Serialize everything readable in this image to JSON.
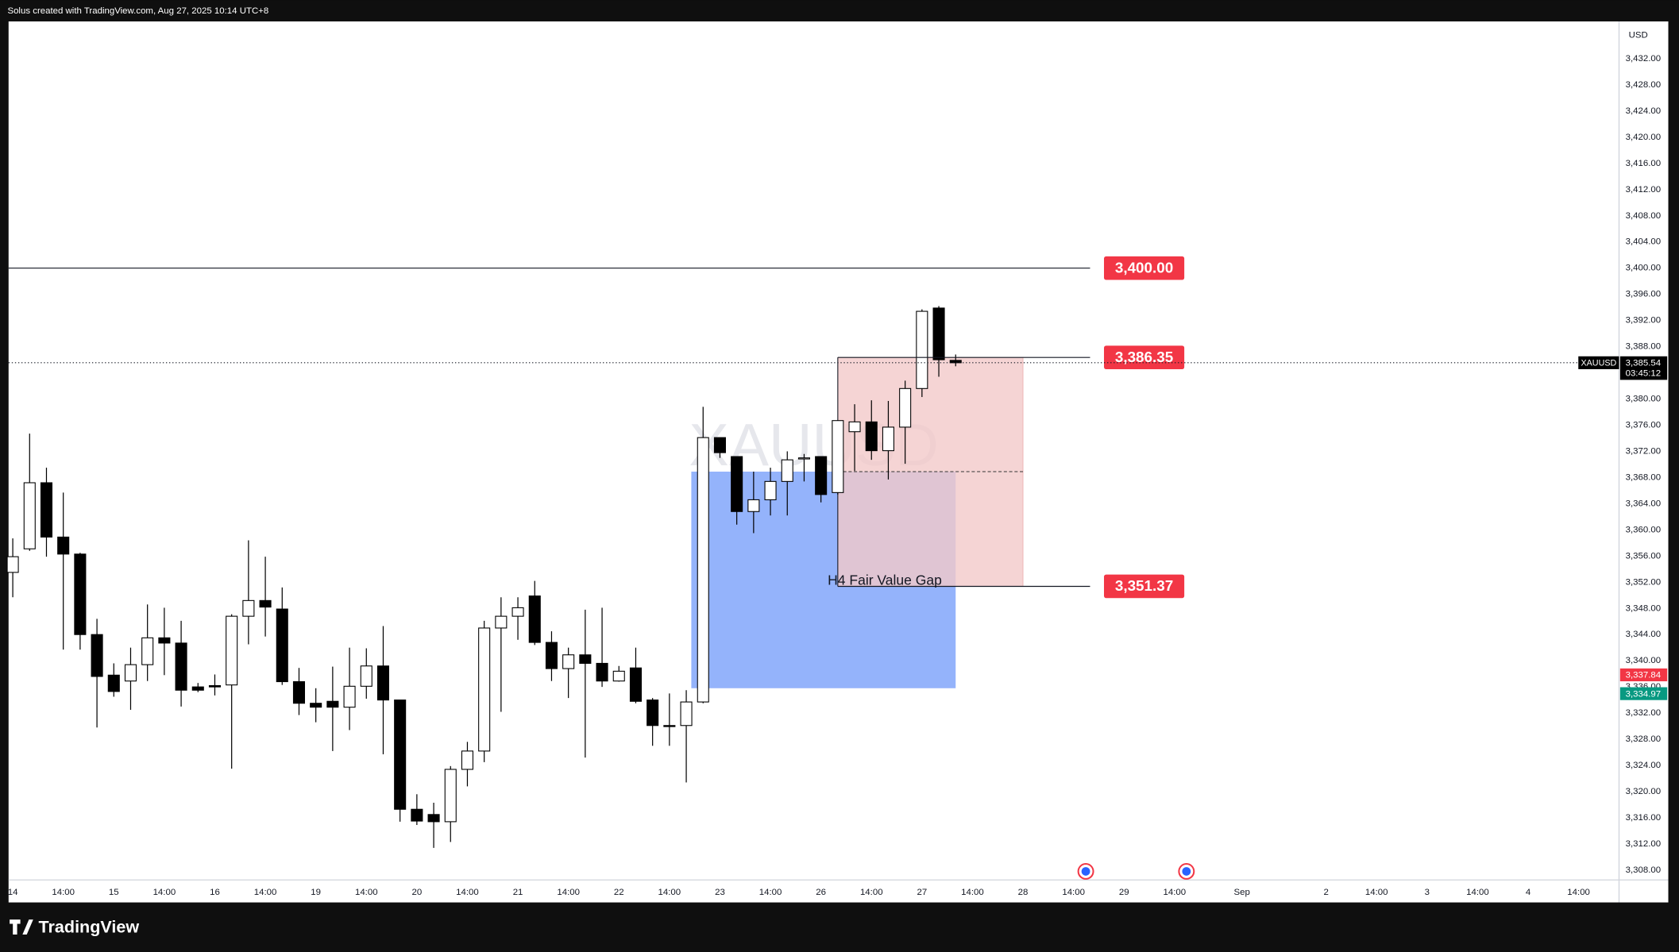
{
  "header": "Solus created with TradingView.com, Aug 27, 2025 10:14 UTC+8",
  "footer": "TradingView",
  "chart_data": {
    "type": "candlestick",
    "symbol": "XAUUSD",
    "currency": "USD",
    "up_color": "#ffffff",
    "down_color": "#000000",
    "open": [
      3353.5,
      3357.1,
      3367.2,
      3358.9,
      3356.3,
      3344.0,
      3337.8,
      3336.9,
      3339.4,
      3343.5,
      3342.7,
      3336.0,
      3336.2,
      3336.3,
      3346.8,
      3349.2,
      3347.9,
      3336.8,
      3333.5,
      3333.8,
      3332.9,
      3336.1,
      3339.2,
      3334.0,
      3317.3,
      3316.5,
      3315.4,
      3323.4,
      3326.2,
      3345.0,
      3346.8,
      3349.9,
      3342.8,
      3338.8,
      3340.9,
      3339.6,
      3336.9,
      3338.9,
      3334.0,
      3330.1,
      3330.1,
      3333.7,
      3374.1,
      3371.2,
      3362.8,
      3364.6,
      3367.4,
      3370.9,
      3371.2,
      3365.7,
      3375.0,
      3376.5,
      3372.1,
      3375.7,
      3381.6,
      3393.9,
      3385.9
    ],
    "high": [
      3358.7,
      3374.7,
      3369.5,
      3365.7,
      3356.5,
      3346.4,
      3339.6,
      3342.0,
      3348.6,
      3348.1,
      3346.1,
      3336.6,
      3337.9,
      3347.1,
      3358.4,
      3355.9,
      3351.2,
      3338.9,
      3335.8,
      3339.1,
      3342.0,
      3341.9,
      3345.3,
      3334.0,
      3319.6,
      3318.3,
      3323.9,
      3327.6,
      3346.1,
      3349.7,
      3349.7,
      3352.2,
      3344.5,
      3342.0,
      3347.8,
      3348.1,
      3339.2,
      3342.0,
      3334.3,
      3335.0,
      3335.5,
      3378.8,
      3374.1,
      3371.2,
      3368.9,
      3369.5,
      3372.0,
      3371.6,
      3371.2,
      3376.7,
      3379.2,
      3379.8,
      3379.7,
      3382.8,
      3393.7,
      3394.2,
      3386.8
    ],
    "low": [
      3349.7,
      3356.8,
      3355.9,
      3341.7,
      3341.7,
      3329.8,
      3334.5,
      3332.5,
      3336.9,
      3337.8,
      3333.0,
      3335.2,
      3334.7,
      3323.5,
      3342.5,
      3343.7,
      3336.3,
      3331.7,
      3330.6,
      3326.2,
      3329.4,
      3334.2,
      3325.7,
      3315.4,
      3314.9,
      3311.4,
      3312.3,
      3320.8,
      3324.5,
      3332.2,
      3343.2,
      3342.4,
      3336.9,
      3334.3,
      3325.2,
      3336.0,
      3336.8,
      3333.5,
      3327.0,
      3327.0,
      3321.4,
      3333.5,
      3371.0,
      3360.8,
      3359.5,
      3362.2,
      3362.2,
      3367.4,
      3364.2,
      3365.4,
      3369.0,
      3370.7,
      3367.7,
      3370.1,
      3380.3,
      3383.4,
      3385.0
    ],
    "close": [
      3355.9,
      3367.2,
      3358.9,
      3356.3,
      3344.0,
      3337.6,
      3335.3,
      3339.4,
      3343.5,
      3342.7,
      3335.5,
      3335.5,
      3336.0,
      3346.8,
      3349.2,
      3348.2,
      3336.8,
      3333.5,
      3332.9,
      3332.9,
      3336.1,
      3339.2,
      3334.0,
      3317.3,
      3315.5,
      3315.4,
      3323.4,
      3326.2,
      3345.0,
      3346.8,
      3348.1,
      3342.8,
      3338.8,
      3340.9,
      3339.6,
      3336.9,
      3338.4,
      3333.8,
      3330.1,
      3330.0,
      3333.7,
      3374.1,
      3371.8,
      3362.8,
      3364.6,
      3367.4,
      3370.7,
      3371.0,
      3365.4,
      3376.7,
      3376.5,
      3372.1,
      3375.7,
      3381.6,
      3393.4,
      3386.0,
      3385.54
    ],
    "xlim": [
      -0.25,
      95.4
    ],
    "xticks": [
      {
        "value": 0,
        "label": "14"
      },
      {
        "value": 3,
        "label": "14:00"
      },
      {
        "value": 6,
        "label": "15"
      },
      {
        "value": 9,
        "label": "14:00"
      },
      {
        "value": 12,
        "label": "16"
      },
      {
        "value": 15,
        "label": "14:00"
      },
      {
        "value": 18,
        "label": "19"
      },
      {
        "value": 21,
        "label": "14:00"
      },
      {
        "value": 24,
        "label": "20"
      },
      {
        "value": 27,
        "label": "14:00"
      },
      {
        "value": 30,
        "label": "21"
      },
      {
        "value": 33,
        "label": "14:00"
      },
      {
        "value": 36,
        "label": "22"
      },
      {
        "value": 39,
        "label": "14:00"
      },
      {
        "value": 42,
        "label": "23"
      },
      {
        "value": 45,
        "label": "14:00"
      },
      {
        "value": 48,
        "label": "26"
      },
      {
        "value": 51,
        "label": "14:00"
      },
      {
        "value": 54,
        "label": "27"
      },
      {
        "value": 57,
        "label": "14:00"
      },
      {
        "value": 60,
        "label": "28"
      },
      {
        "value": 63,
        "label": "14:00"
      },
      {
        "value": 66,
        "label": "29"
      },
      {
        "value": 69,
        "label": "14:00"
      },
      {
        "value": 73,
        "label": "Sep"
      },
      {
        "value": 78,
        "label": "2"
      },
      {
        "value": 81,
        "label": "14:00"
      },
      {
        "value": 84,
        "label": "3"
      },
      {
        "value": 87,
        "label": "14:00"
      },
      {
        "value": 90,
        "label": "4"
      },
      {
        "value": 93,
        "label": "14:00"
      }
    ],
    "ylim": [
      3306.5,
      3437.7
    ],
    "yticks": [
      {
        "value": 3308,
        "label": "3,308.00"
      },
      {
        "value": 3312,
        "label": "3,312.00"
      },
      {
        "value": 3316,
        "label": "3,316.00"
      },
      {
        "value": 3320,
        "label": "3,320.00"
      },
      {
        "value": 3324,
        "label": "3,324.00"
      },
      {
        "value": 3328,
        "label": "3,328.00"
      },
      {
        "value": 3332,
        "label": "3,332.00"
      },
      {
        "value": 3336,
        "label": "3,336.00"
      },
      {
        "value": 3340,
        "label": "3,340.00"
      },
      {
        "value": 3344,
        "label": "3,344.00"
      },
      {
        "value": 3348,
        "label": "3,348.00"
      },
      {
        "value": 3352,
        "label": "3,352.00"
      },
      {
        "value": 3356,
        "label": "3,356.00"
      },
      {
        "value": 3360,
        "label": "3,360.00"
      },
      {
        "value": 3364,
        "label": "3,364.00"
      },
      {
        "value": 3368,
        "label": "3,368.00"
      },
      {
        "value": 3372,
        "label": "3,372.00"
      },
      {
        "value": 3376,
        "label": "3,376.00"
      },
      {
        "value": 3380,
        "label": "3,380.00"
      },
      {
        "value": 3384,
        "label": "3,384.00"
      },
      {
        "value": 3388,
        "label": "3,388.00"
      },
      {
        "value": 3392,
        "label": "3,392.00"
      },
      {
        "value": 3396,
        "label": "3,396.00"
      },
      {
        "value": 3400,
        "label": "3,400.00"
      },
      {
        "value": 3404,
        "label": "3,404.00"
      },
      {
        "value": 3408,
        "label": "3,408.00"
      },
      {
        "value": 3412,
        "label": "3,412.00"
      },
      {
        "value": 3416,
        "label": "3,416.00"
      },
      {
        "value": 3420,
        "label": "3,420.00"
      },
      {
        "value": 3424,
        "label": "3,424.00"
      },
      {
        "value": 3428,
        "label": "3,428.00"
      },
      {
        "value": 3432,
        "label": "3,432.00"
      }
    ],
    "grid": false,
    "levels": [
      {
        "value": 3400,
        "label": "3,400.00"
      },
      {
        "value": 3386.35,
        "label": "3,386.35"
      },
      {
        "value": 3351.37,
        "label": "3,351.37"
      }
    ],
    "level_color": "#f23645",
    "fvg": {
      "label": "H4 Fair Value Gap",
      "top": 3368.9,
      "bottom": 3335.8,
      "color": "#94b3fb"
    },
    "position_color": "#f3c9c9",
    "last_price": {
      "value": 3385.54,
      "label": "3,385.54"
    },
    "countdown": "03:45:12",
    "price_labels": [
      {
        "value": 3337.84,
        "label": "3,337.84",
        "color": "#f23645"
      },
      {
        "value": 3334.97,
        "label": "3,334.97",
        "color": "#089981"
      }
    ]
  }
}
